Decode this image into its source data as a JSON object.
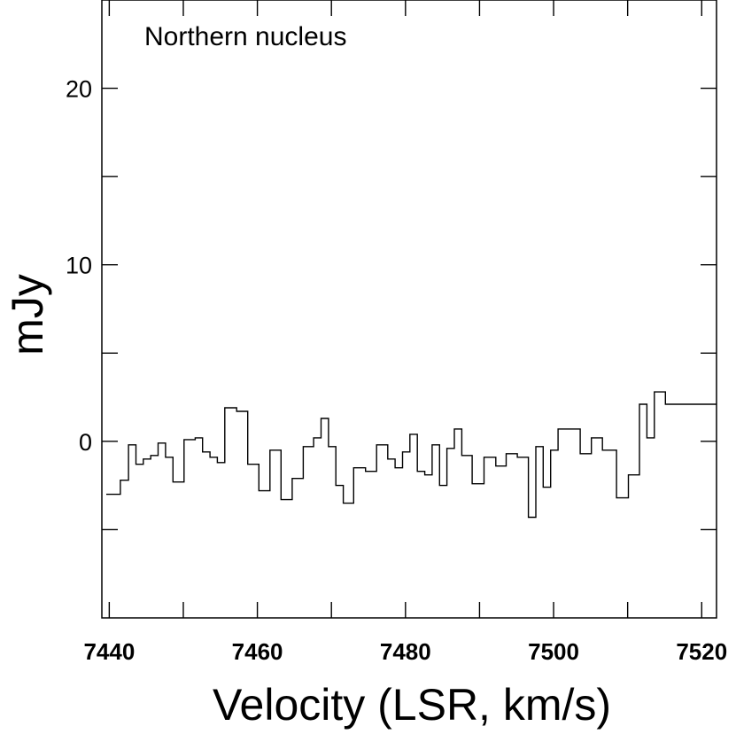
{
  "chart_data": {
    "type": "line",
    "style": "step",
    "annotation": "Northern nucleus",
    "xlabel": "Velocity (LSR, km/s)",
    "ylabel": "mJy",
    "xlim": [
      7439,
      7522
    ],
    "ylim": [
      -10,
      25
    ],
    "x_ticks": [
      7440,
      7460,
      7480,
      7500,
      7520
    ],
    "x_tick_labels": [
      "7440",
      "7460",
      "7480",
      "7500",
      "7520"
    ],
    "x_minor_ticks": [
      7450,
      7470,
      7490,
      7510
    ],
    "y_ticks": [
      0,
      10,
      20
    ],
    "y_tick_labels": [
      "0",
      "10",
      "20"
    ],
    "y_minor_ticks": [
      -5,
      5,
      15
    ],
    "grid": false,
    "line_color": "#000000",
    "series": [
      {
        "x": [
          7439.6,
          7441.5,
          7442.6,
          7443.6,
          7444.6,
          7445.6,
          7446.6,
          7447.6,
          7448.6,
          7450.1,
          7451.6,
          7452.6,
          7453.6,
          7454.6,
          7455.6,
          7457.2,
          7458.7,
          7460.2,
          7461.7,
          7463.2,
          7464.7,
          7466.2,
          7467.6,
          7468.6,
          7469.6,
          7470.6,
          7471.6,
          7473.0,
          7474.6,
          7476.1,
          7477.6,
          7478.6,
          7479.6,
          7480.6,
          7481.6,
          7482.6,
          7483.6,
          7484.6,
          7485.6,
          7486.6,
          7487.6,
          7489.0,
          7490.6,
          7492.2,
          7493.6,
          7495.1,
          7496.6,
          7497.6,
          7498.6,
          7499.6,
          7500.6,
          7502.1,
          7503.6,
          7505.1,
          7506.6,
          7508.5,
          7510.1,
          7511.6,
          7512.6,
          7513.6,
          7515.1,
          7516.6,
          7518.2,
          7519.6,
          7521.1
        ],
        "y": [
          -3.0,
          -2.2,
          -0.2,
          -1.3,
          -1.0,
          -0.8,
          -0.1,
          -0.9,
          -2.3,
          0.1,
          0.2,
          -0.6,
          -0.9,
          -1.2,
          1.9,
          1.7,
          -1.3,
          -2.8,
          -0.5,
          -3.3,
          -2.1,
          -0.3,
          0.2,
          1.3,
          -0.3,
          -2.5,
          -3.5,
          -1.5,
          -1.7,
          -0.2,
          -1.0,
          -1.5,
          -0.6,
          0.4,
          -1.7,
          -1.9,
          -0.2,
          -2.5,
          -0.4,
          0.7,
          -0.8,
          -2.4,
          -0.9,
          -1.4,
          -0.7,
          -0.9,
          -4.3,
          -0.3,
          -2.6,
          -0.5,
          0.7,
          0.7,
          -0.7,
          0.2,
          -0.5,
          -3.2,
          -1.9,
          2.1,
          0.2,
          2.8,
          2.1,
          2.1,
          2.1,
          2.1,
          2.1
        ]
      }
    ]
  }
}
